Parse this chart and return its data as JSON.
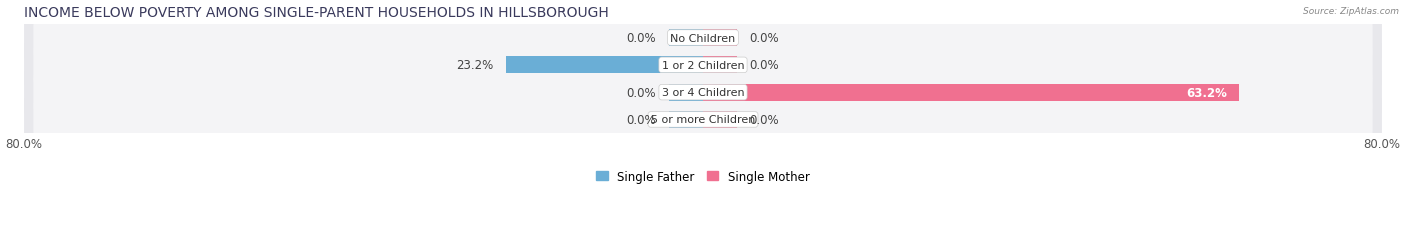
{
  "title": "INCOME BELOW POVERTY AMONG SINGLE-PARENT HOUSEHOLDS IN HILLSBOROUGH",
  "source": "Source: ZipAtlas.com",
  "categories": [
    "No Children",
    "1 or 2 Children",
    "3 or 4 Children",
    "5 or more Children"
  ],
  "single_father": [
    0.0,
    23.2,
    0.0,
    0.0
  ],
  "single_mother": [
    0.0,
    0.0,
    63.2,
    0.0
  ],
  "father_color": "#6aaed6",
  "mother_color": "#f07090",
  "row_bg_color": "#e8e8ec",
  "row_bg_inner": "#f4f4f6",
  "axis_min": -80.0,
  "axis_max": 80.0,
  "title_fontsize": 10,
  "label_fontsize": 8.5,
  "category_fontsize": 8,
  "stub_size": 4.0
}
